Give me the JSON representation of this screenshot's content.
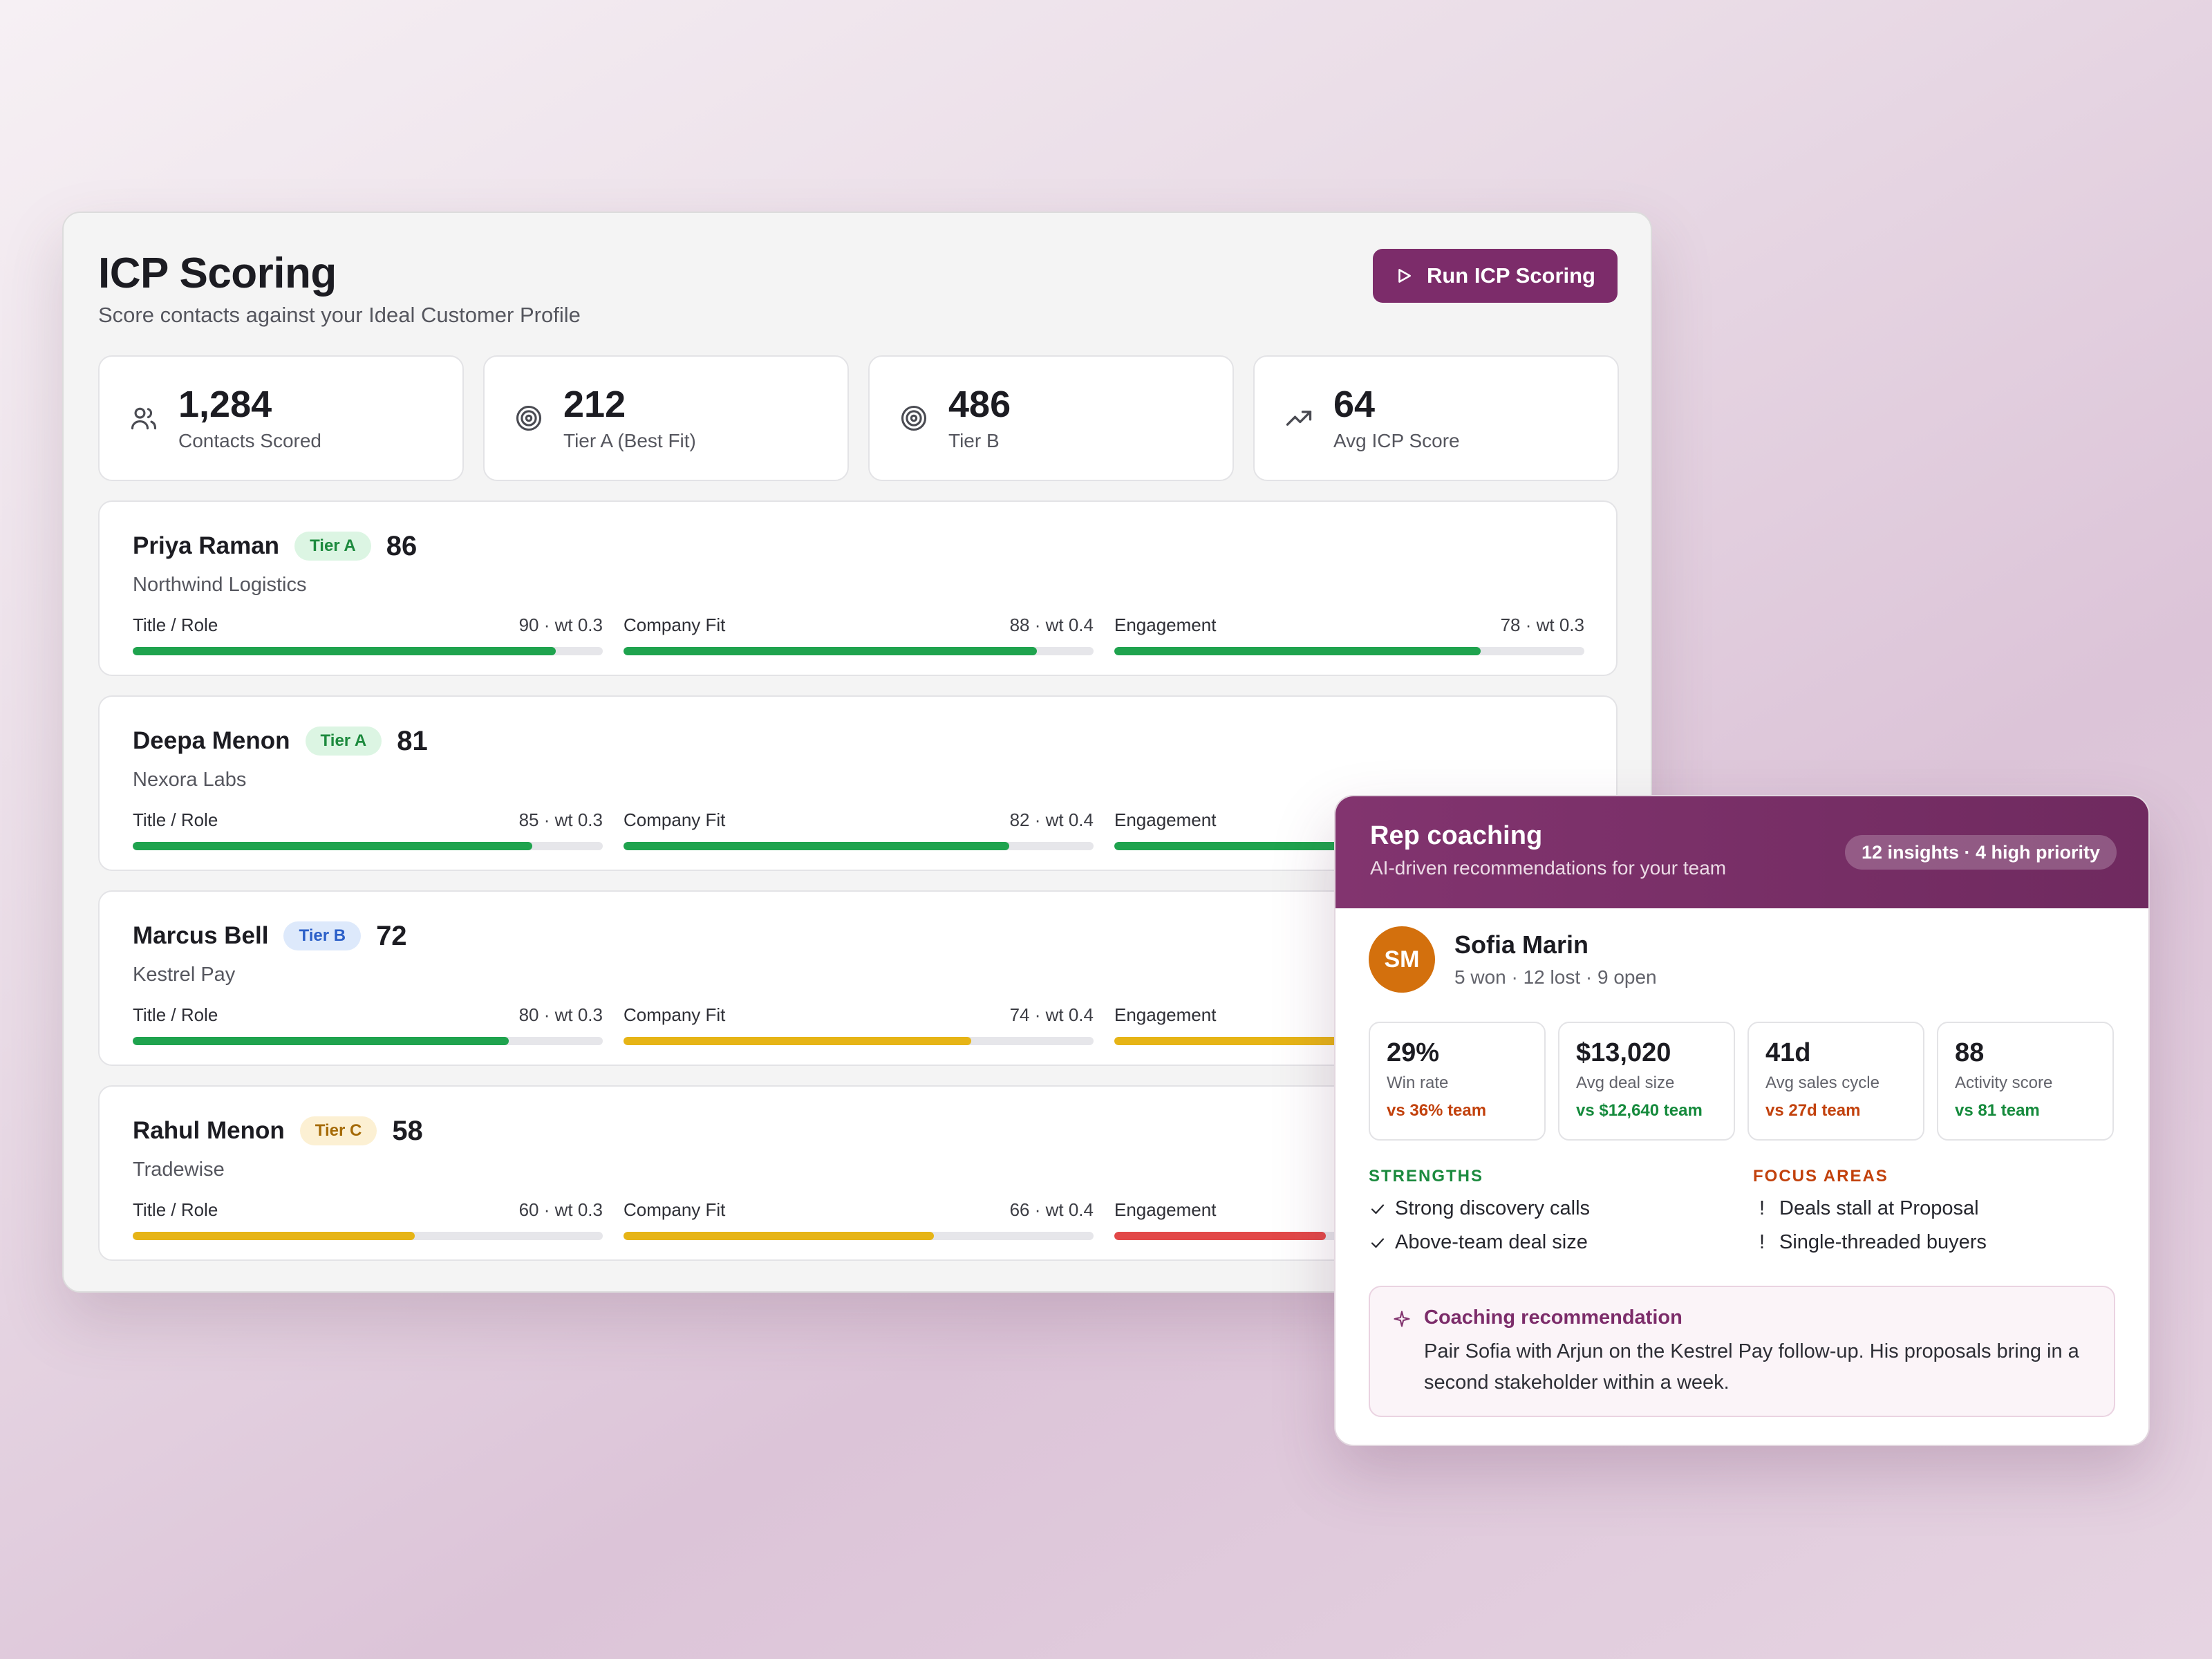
{
  "icp": {
    "title": "ICP Scoring",
    "subtitle": "Score contacts against your Ideal Customer Profile",
    "run_button_label": "Run ICP Scoring",
    "stats": [
      {
        "icon": "users-icon",
        "value": "1,284",
        "label": "Contacts Scored"
      },
      {
        "icon": "target-icon",
        "value": "212",
        "label": "Tier A (Best Fit)"
      },
      {
        "icon": "target-icon",
        "value": "486",
        "label": "Tier B"
      },
      {
        "icon": "trending-up-icon",
        "value": "64",
        "label": "Avg ICP Score"
      }
    ],
    "contacts": [
      {
        "name": "Priya Raman",
        "tier": "Tier A",
        "score": "86",
        "company": "Northwind Logistics",
        "metrics": [
          {
            "label": "Title / Role",
            "value": "90 · wt 0.3",
            "fill": 0.9,
            "color": "#1fa34e"
          },
          {
            "label": "Company Fit",
            "value": "88 · wt 0.4",
            "fill": 0.88,
            "color": "#1fa34e"
          },
          {
            "label": "Engagement",
            "value": "78 · wt 0.3",
            "fill": 0.78,
            "color": "#1fa34e"
          }
        ]
      },
      {
        "name": "Deepa Menon",
        "tier": "Tier A",
        "score": "81",
        "company": "Nexora Labs",
        "metrics": [
          {
            "label": "Title / Role",
            "value": "85 · wt 0.3",
            "fill": 0.85,
            "color": "#1fa34e"
          },
          {
            "label": "Company Fit",
            "value": "82 · wt 0.4",
            "fill": 0.82,
            "color": "#1fa34e"
          },
          {
            "label": "Engagement",
            "value": "",
            "fill": 0.75,
            "color": "#1fa34e"
          }
        ]
      },
      {
        "name": "Marcus Bell",
        "tier": "Tier B",
        "score": "72",
        "company": "Kestrel Pay",
        "metrics": [
          {
            "label": "Title / Role",
            "value": "80 · wt 0.3",
            "fill": 0.8,
            "color": "#1fa34e"
          },
          {
            "label": "Company Fit",
            "value": "74 · wt 0.4",
            "fill": 0.74,
            "color": "#e6b416"
          },
          {
            "label": "Engagement",
            "value": "",
            "fill": 0.62,
            "color": "#e6b416"
          }
        ]
      },
      {
        "name": "Rahul Menon",
        "tier": "Tier C",
        "score": "58",
        "company": "Tradewise",
        "metrics": [
          {
            "label": "Title / Role",
            "value": "60 · wt 0.3",
            "fill": 0.6,
            "color": "#e6b416"
          },
          {
            "label": "Company Fit",
            "value": "66 · wt 0.4",
            "fill": 0.66,
            "color": "#e6b416"
          },
          {
            "label": "Engagement",
            "value": "",
            "fill": 0.45,
            "color": "#e24848"
          }
        ]
      }
    ]
  },
  "coaching": {
    "title": "Rep coaching",
    "subtitle": "AI-driven recommendations for your team",
    "badge": "12 insights · 4 high priority",
    "rep": {
      "initials": "SM",
      "name": "Sofia Marin",
      "record": "5 won · 12 lost · 9 open"
    },
    "kpis": [
      {
        "value": "29%",
        "label": "Win rate",
        "compare": "vs 36% team",
        "trend": "below"
      },
      {
        "value": "$13,020",
        "label": "Avg deal size",
        "compare": "vs $12,640 team",
        "trend": "above"
      },
      {
        "value": "41d",
        "label": "Avg sales cycle",
        "compare": "vs 27d team",
        "trend": "below"
      },
      {
        "value": "88",
        "label": "Activity score",
        "compare": "vs 81 team",
        "trend": "above"
      }
    ],
    "strengths_heading": "STRENGTHS",
    "strengths": [
      "Strong discovery calls",
      "Above-team deal size"
    ],
    "focus_heading": "FOCUS AREAS",
    "focus_mark": "!",
    "focus": [
      "Deals stall at Proposal",
      "Single-threaded buyers"
    ],
    "recommendation": {
      "title": "Coaching recommendation",
      "text": "Pair Sofia with Arjun on the Kestrel Pay follow-up. His proposals bring in a second stakeholder within a week."
    }
  },
  "colors": {
    "accent": "#7c2c6a",
    "tier_a": "#1d8a3e",
    "tier_b": "#2b5fc8",
    "tier_c": "#a56a06",
    "good": "#1fa34e",
    "warn": "#e6b416",
    "bad": "#e24848"
  }
}
